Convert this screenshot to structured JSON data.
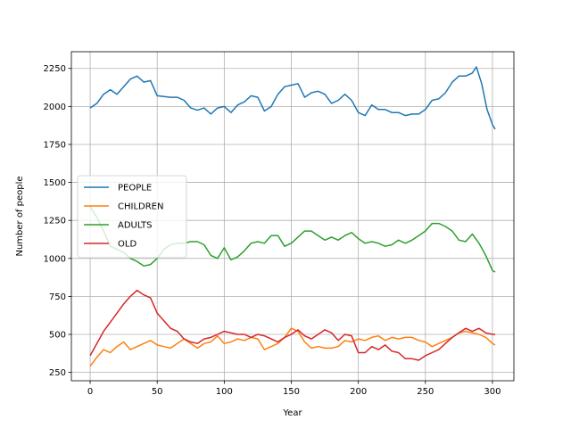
{
  "chart_data": {
    "type": "line",
    "title": "",
    "xlabel": "Year",
    "ylabel": "Number of people",
    "xlim": [
      -14,
      316
    ],
    "ylim": [
      195,
      2360
    ],
    "xticks": [
      0,
      50,
      100,
      150,
      200,
      250,
      300
    ],
    "xtick_labels": [
      "0",
      "50",
      "100",
      "150",
      "200",
      "250",
      "300"
    ],
    "yticks": [
      250,
      500,
      750,
      1000,
      1250,
      1500,
      1750,
      2000,
      2250
    ],
    "ytick_labels": [
      "250",
      "500",
      "750",
      "1000",
      "1250",
      "1500",
      "1750",
      "2000",
      "2250"
    ],
    "grid": true,
    "legend_position": "center-left",
    "series": [
      {
        "name": "PEOPLE",
        "color": "#1f77b4",
        "points": [
          [
            0,
            1990
          ],
          [
            5,
            2020
          ],
          [
            10,
            2080
          ],
          [
            15,
            2110
          ],
          [
            20,
            2080
          ],
          [
            25,
            2130
          ],
          [
            30,
            2180
          ],
          [
            35,
            2200
          ],
          [
            40,
            2160
          ],
          [
            45,
            2170
          ],
          [
            50,
            2070
          ],
          [
            55,
            2065
          ],
          [
            60,
            2060
          ],
          [
            65,
            2060
          ],
          [
            70,
            2040
          ],
          [
            75,
            1990
          ],
          [
            80,
            1975
          ],
          [
            85,
            1990
          ],
          [
            90,
            1950
          ],
          [
            95,
            1990
          ],
          [
            100,
            2000
          ],
          [
            105,
            1960
          ],
          [
            110,
            2010
          ],
          [
            115,
            2030
          ],
          [
            120,
            2070
          ],
          [
            125,
            2060
          ],
          [
            130,
            1970
          ],
          [
            135,
            2000
          ],
          [
            140,
            2080
          ],
          [
            145,
            2130
          ],
          [
            150,
            2140
          ],
          [
            155,
            2150
          ],
          [
            160,
            2060
          ],
          [
            165,
            2090
          ],
          [
            170,
            2100
          ],
          [
            175,
            2080
          ],
          [
            180,
            2020
          ],
          [
            185,
            2040
          ],
          [
            190,
            2080
          ],
          [
            195,
            2040
          ],
          [
            200,
            1960
          ],
          [
            205,
            1940
          ],
          [
            210,
            2010
          ],
          [
            215,
            1980
          ],
          [
            220,
            1980
          ],
          [
            225,
            1960
          ],
          [
            230,
            1960
          ],
          [
            235,
            1940
          ],
          [
            240,
            1950
          ],
          [
            245,
            1950
          ],
          [
            250,
            1980
          ],
          [
            255,
            2040
          ],
          [
            260,
            2050
          ],
          [
            265,
            2090
          ],
          [
            270,
            2160
          ],
          [
            275,
            2200
          ],
          [
            280,
            2200
          ],
          [
            285,
            2220
          ],
          [
            288,
            2260
          ],
          [
            292,
            2150
          ],
          [
            296,
            1980
          ],
          [
            300,
            1880
          ],
          [
            302,
            1850
          ]
        ]
      },
      {
        "name": "CHILDREN",
        "color": "#ff7f0e",
        "points": [
          [
            0,
            290
          ],
          [
            5,
            350
          ],
          [
            10,
            400
          ],
          [
            15,
            380
          ],
          [
            20,
            420
          ],
          [
            25,
            450
          ],
          [
            30,
            400
          ],
          [
            35,
            420
          ],
          [
            40,
            440
          ],
          [
            45,
            460
          ],
          [
            50,
            430
          ],
          [
            55,
            420
          ],
          [
            60,
            410
          ],
          [
            65,
            440
          ],
          [
            70,
            470
          ],
          [
            75,
            440
          ],
          [
            80,
            410
          ],
          [
            85,
            440
          ],
          [
            90,
            450
          ],
          [
            95,
            490
          ],
          [
            100,
            440
          ],
          [
            105,
            450
          ],
          [
            110,
            470
          ],
          [
            115,
            460
          ],
          [
            120,
            480
          ],
          [
            125,
            470
          ],
          [
            130,
            400
          ],
          [
            135,
            420
          ],
          [
            140,
            440
          ],
          [
            145,
            480
          ],
          [
            150,
            540
          ],
          [
            155,
            520
          ],
          [
            160,
            450
          ],
          [
            165,
            410
          ],
          [
            170,
            420
          ],
          [
            175,
            410
          ],
          [
            180,
            410
          ],
          [
            185,
            420
          ],
          [
            190,
            460
          ],
          [
            195,
            450
          ],
          [
            200,
            470
          ],
          [
            205,
            460
          ],
          [
            210,
            480
          ],
          [
            215,
            490
          ],
          [
            220,
            460
          ],
          [
            225,
            480
          ],
          [
            230,
            470
          ],
          [
            235,
            480
          ],
          [
            240,
            480
          ],
          [
            245,
            460
          ],
          [
            250,
            450
          ],
          [
            255,
            420
          ],
          [
            260,
            440
          ],
          [
            265,
            460
          ],
          [
            270,
            480
          ],
          [
            275,
            510
          ],
          [
            280,
            520
          ],
          [
            285,
            510
          ],
          [
            290,
            500
          ],
          [
            295,
            480
          ],
          [
            300,
            440
          ],
          [
            302,
            430
          ]
        ]
      },
      {
        "name": "ADULTS",
        "color": "#2ca02c",
        "points": [
          [
            0,
            1340
          ],
          [
            5,
            1270
          ],
          [
            10,
            1180
          ],
          [
            15,
            1080
          ],
          [
            20,
            1060
          ],
          [
            25,
            1040
          ],
          [
            30,
            1000
          ],
          [
            35,
            980
          ],
          [
            40,
            950
          ],
          [
            45,
            960
          ],
          [
            50,
            1000
          ],
          [
            55,
            1060
          ],
          [
            60,
            1090
          ],
          [
            65,
            1100
          ],
          [
            70,
            1100
          ],
          [
            75,
            1110
          ],
          [
            80,
            1110
          ],
          [
            85,
            1090
          ],
          [
            90,
            1020
          ],
          [
            95,
            1000
          ],
          [
            100,
            1070
          ],
          [
            105,
            990
          ],
          [
            110,
            1010
          ],
          [
            115,
            1050
          ],
          [
            120,
            1100
          ],
          [
            125,
            1110
          ],
          [
            130,
            1100
          ],
          [
            135,
            1150
          ],
          [
            140,
            1150
          ],
          [
            145,
            1080
          ],
          [
            150,
            1100
          ],
          [
            155,
            1140
          ],
          [
            160,
            1180
          ],
          [
            165,
            1180
          ],
          [
            170,
            1150
          ],
          [
            175,
            1120
          ],
          [
            180,
            1140
          ],
          [
            185,
            1120
          ],
          [
            190,
            1150
          ],
          [
            195,
            1170
          ],
          [
            200,
            1130
          ],
          [
            205,
            1100
          ],
          [
            210,
            1110
          ],
          [
            215,
            1100
          ],
          [
            220,
            1080
          ],
          [
            225,
            1090
          ],
          [
            230,
            1120
          ],
          [
            235,
            1100
          ],
          [
            240,
            1120
          ],
          [
            245,
            1150
          ],
          [
            250,
            1180
          ],
          [
            255,
            1230
          ],
          [
            260,
            1230
          ],
          [
            265,
            1210
          ],
          [
            270,
            1180
          ],
          [
            275,
            1120
          ],
          [
            280,
            1110
          ],
          [
            285,
            1160
          ],
          [
            290,
            1100
          ],
          [
            295,
            1020
          ],
          [
            300,
            920
          ],
          [
            302,
            910
          ]
        ]
      },
      {
        "name": "OLD",
        "color": "#d62728",
        "points": [
          [
            0,
            360
          ],
          [
            5,
            440
          ],
          [
            10,
            520
          ],
          [
            15,
            580
          ],
          [
            20,
            640
          ],
          [
            25,
            700
          ],
          [
            30,
            750
          ],
          [
            35,
            790
          ],
          [
            40,
            760
          ],
          [
            45,
            740
          ],
          [
            50,
            640
          ],
          [
            55,
            590
          ],
          [
            60,
            540
          ],
          [
            65,
            520
          ],
          [
            70,
            470
          ],
          [
            75,
            450
          ],
          [
            80,
            440
          ],
          [
            85,
            470
          ],
          [
            90,
            480
          ],
          [
            95,
            500
          ],
          [
            100,
            520
          ],
          [
            105,
            510
          ],
          [
            110,
            500
          ],
          [
            115,
            500
          ],
          [
            120,
            480
          ],
          [
            125,
            500
          ],
          [
            130,
            490
          ],
          [
            135,
            470
          ],
          [
            140,
            450
          ],
          [
            145,
            480
          ],
          [
            150,
            500
          ],
          [
            155,
            530
          ],
          [
            160,
            490
          ],
          [
            165,
            470
          ],
          [
            170,
            500
          ],
          [
            175,
            530
          ],
          [
            180,
            510
          ],
          [
            185,
            460
          ],
          [
            190,
            500
          ],
          [
            195,
            490
          ],
          [
            200,
            380
          ],
          [
            205,
            380
          ],
          [
            210,
            420
          ],
          [
            215,
            400
          ],
          [
            220,
            430
          ],
          [
            225,
            390
          ],
          [
            230,
            380
          ],
          [
            235,
            340
          ],
          [
            240,
            340
          ],
          [
            245,
            330
          ],
          [
            250,
            360
          ],
          [
            255,
            380
          ],
          [
            260,
            400
          ],
          [
            265,
            440
          ],
          [
            270,
            480
          ],
          [
            275,
            510
          ],
          [
            280,
            540
          ],
          [
            285,
            520
          ],
          [
            290,
            540
          ],
          [
            295,
            510
          ],
          [
            300,
            500
          ],
          [
            302,
            500
          ]
        ]
      }
    ]
  }
}
